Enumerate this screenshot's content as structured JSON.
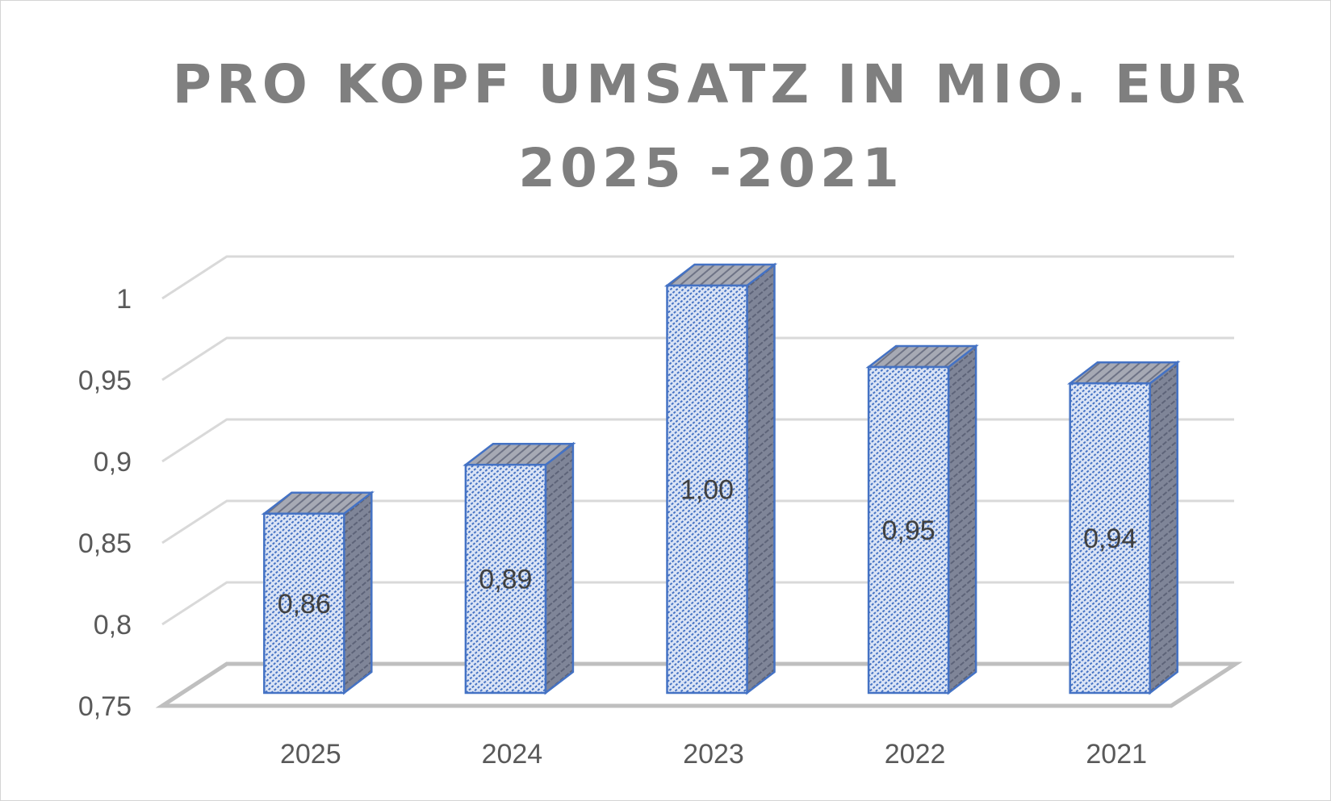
{
  "chart_data": {
    "type": "bar",
    "style": "3d-column",
    "title": [
      "PRO KOPF UMSATZ IN MIO. EUR",
      "2025 -2021"
    ],
    "categories": [
      "2025",
      "2024",
      "2023",
      "2022",
      "2021"
    ],
    "values": [
      0.86,
      0.89,
      1.0,
      0.95,
      0.94
    ],
    "data_labels": [
      "0,86",
      "0,89",
      "1,00",
      "0,95",
      "0,94"
    ],
    "yticks": [
      0.75,
      0.8,
      0.85,
      0.9,
      0.95,
      1
    ],
    "ytick_labels": [
      "0,75",
      "0,8",
      "0,85",
      "0,9",
      "0,95",
      "1"
    ],
    "ylim": [
      0.75,
      1.0
    ],
    "grid": true,
    "legend": "none",
    "colors": {
      "bar_front": "#dbe4f5",
      "bar_hatch": "#4472c4",
      "bar_side": "#7f8598",
      "bar_top": "#a6a9b4",
      "bar_outline": "#4472c4",
      "gridline": "#d9d9d9",
      "floor": "#bfbfbf",
      "text": "#595959",
      "title": "#7f7f7f"
    }
  }
}
